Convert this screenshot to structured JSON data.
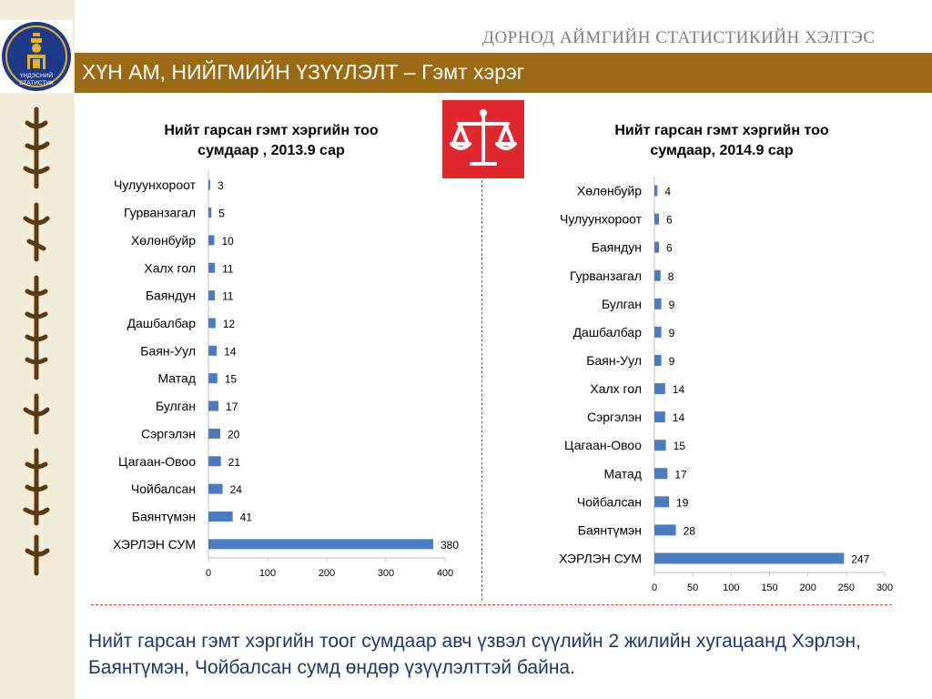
{
  "header": {
    "agency": "ДОРНОД АЙМГИЙН СТАТИСТИКИЙН ХЭЛТЭС",
    "title": "ХҮН АМ, НИЙГМИЙН ҮЗҮҮЛЭЛТ – Гэмт хэрэг",
    "logo_text": "ҮНДЭСНИЙ СТАТИСТИК"
  },
  "colors": {
    "bar": "#4a7cc4",
    "title_bar": "#9b6a14",
    "justice_icon_bg": "#e0292f",
    "summary_text": "#1f3767"
  },
  "icons": [
    "national-statistics-logo",
    "scales-of-justice-icon",
    "mongolian-script-decoration"
  ],
  "chart_data": [
    {
      "type": "bar",
      "orientation": "horizontal",
      "title": "Нийт гарсан гэмт хэргийн тоо сумдаар , 2013.9 сар",
      "title_lines": [
        "Нийт гарсан гэмт хэргийн тоо",
        "сумдаар , 2013.9 сар"
      ],
      "categories": [
        "Чулуунхороот",
        "Гурванзагал",
        "Хөлөнбуйр",
        "Халх гол",
        "Баяндун",
        "Дашбалбар",
        "Баян-Уул",
        "Матад",
        "Булган",
        "Сэргэлэн",
        "Цагаан-Овоо",
        "Чойбалсан",
        "Баянтүмэн",
        "ХЭРЛЭН СУМ"
      ],
      "values": [
        3,
        5,
        10,
        11,
        11,
        12,
        14,
        15,
        17,
        20,
        21,
        24,
        41,
        380
      ],
      "xlim": [
        0,
        400
      ],
      "xticks": [
        0,
        100,
        200,
        300,
        400
      ],
      "grid": false
    },
    {
      "type": "bar",
      "orientation": "horizontal",
      "title": "Нийт гарсан гэмт хэргийн тоо сумдаар, 2014.9 сар",
      "title_lines": [
        "Нийт гарсан гэмт хэргийн тоо",
        "сумдаар, 2014.9 сар"
      ],
      "categories": [
        "Хөлөнбуйр",
        "Чулуунхороот",
        "Баяндун",
        "Гурванзагал",
        "Булган",
        "Дашбалбар",
        "Баян-Уул",
        "Халх гол",
        "Сэргэлэн",
        "Цагаан-Овоо",
        "Матад",
        "Чойбалсан",
        "Баянтүмэн",
        "ХЭРЛЭН СУМ"
      ],
      "values": [
        4,
        6,
        6,
        8,
        9,
        9,
        9,
        14,
        14,
        15,
        17,
        19,
        28,
        247
      ],
      "xlim": [
        0,
        300
      ],
      "xticks": [
        0,
        50,
        100,
        150,
        200,
        250,
        300
      ],
      "grid": false
    }
  ],
  "summary": "Нийт гарсан гэмт хэргийн тоог сумдаар авч үзвэл сүүлийн 2 жилийн хугацаанд Хэрлэн, Баянтүмэн, Чойбалсан сумд өндөр үзүүлэлттэй байна."
}
